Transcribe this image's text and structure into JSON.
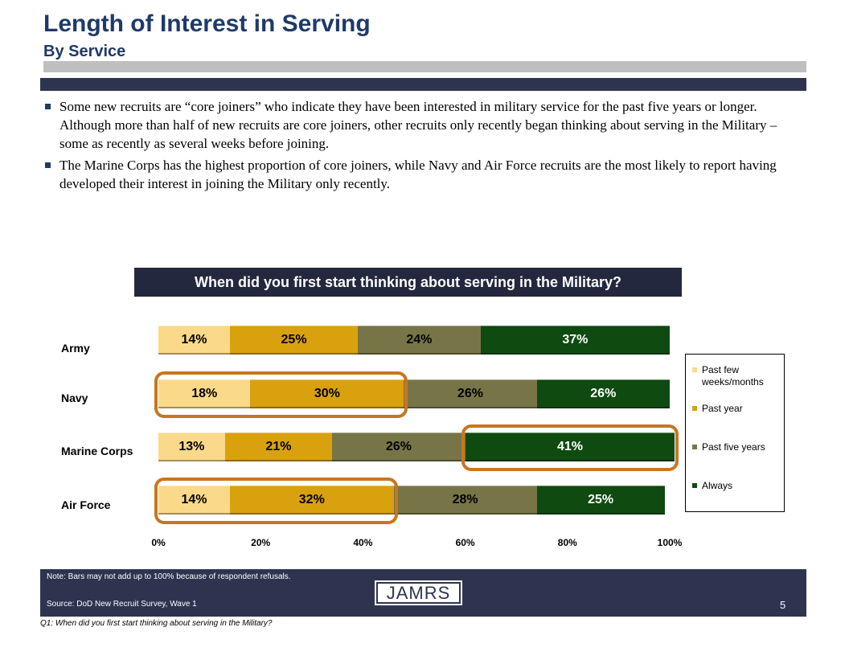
{
  "header": {
    "title": "Length of Interest in Serving",
    "subtitle": "By Service"
  },
  "bullets": [
    "Some new recruits are “core joiners” who indicate they have been interested in military service for the past five years or longer.  Although more than half of new recruits are core joiners, other recruits only recently began thinking about serving in the Military – some as recently as several weeks before joining.",
    "The Marine Corps has the highest proportion of core joiners, while Navy and Air Force recruits are the most likely to report having developed their interest in joining the Military only recently."
  ],
  "footer": {
    "note": "Note:  Bars may not add up to 100% because of respondent refusals.",
    "source": "Source:  DoD New Recruit Survey, Wave 1",
    "logo_text": "JAMRS",
    "page_number": "5",
    "question_note": "Q1: When did you first start thinking about serving in the Military?"
  },
  "colors": {
    "title": "#1f3a68",
    "navy_band": "#2e3450",
    "highlight": "#c8761f"
  },
  "chart_data": {
    "type": "bar",
    "orientation": "horizontal",
    "stacked": true,
    "title": "When did you first start thinking about serving in the Military?",
    "categories": [
      "Army",
      "Navy",
      "Marine Corps",
      "Air Force"
    ],
    "series": [
      {
        "name": "Past few weeks/months",
        "color": "#fbd98a",
        "values": [
          14,
          18,
          13,
          14
        ],
        "labels": [
          "14%",
          "18%",
          "13%",
          "14%"
        ]
      },
      {
        "name": "Past year",
        "color": "#d9a10e",
        "values": [
          25,
          30,
          21,
          32
        ],
        "labels": [
          "25%",
          "30%",
          "21%",
          "32%"
        ]
      },
      {
        "name": "Past five years",
        "color": "#777548",
        "values": [
          24,
          26,
          26,
          28
        ],
        "labels": [
          "24%",
          "26%",
          "26%",
          "28%"
        ]
      },
      {
        "name": "Always",
        "color": "#0f4a10",
        "values": [
          37,
          26,
          41,
          25
        ],
        "labels": [
          "37%",
          "26%",
          "41%",
          "25%"
        ]
      }
    ],
    "xlim": [
      0,
      100
    ],
    "xticks": [
      "0%",
      "20%",
      "40%",
      "60%",
      "80%",
      "100%"
    ],
    "legend_position": "right",
    "highlights": [
      {
        "category": "Navy",
        "series": [
          "Past few weeks/months",
          "Past year"
        ]
      },
      {
        "category": "Marine Corps",
        "series": [
          "Always"
        ]
      },
      {
        "category": "Air Force",
        "series": [
          "Past few weeks/months",
          "Past year"
        ]
      }
    ]
  }
}
